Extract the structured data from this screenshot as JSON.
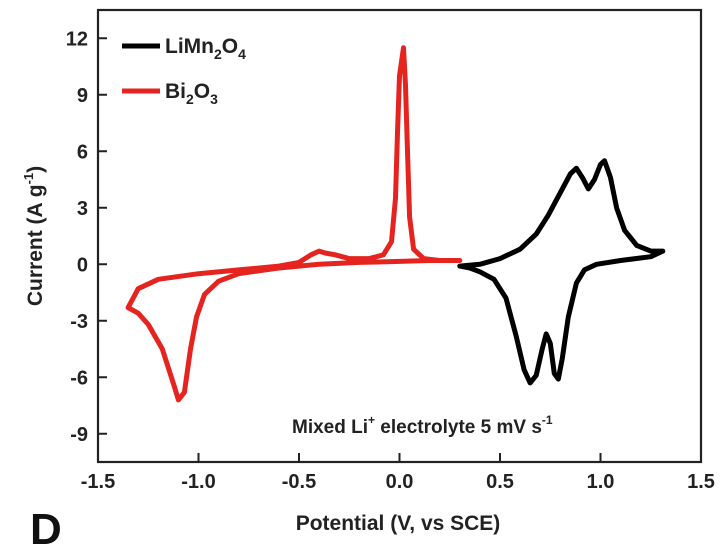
{
  "chart_data": {
    "type": "line",
    "panel_label": "D",
    "xlabel": "Potential (V, vs SCE)",
    "ylabel": "Current (A g",
    "ylabel_sup": "-1",
    "ylabel_end": ")",
    "xlim": [
      -1.5,
      1.5
    ],
    "ylim": [
      -10.5,
      13.5
    ],
    "x_ticks": [
      -1.5,
      -1.0,
      -0.5,
      0.0,
      0.5,
      1.0,
      1.5
    ],
    "x_tick_labels": [
      "-1.5",
      "-1.0",
      "-0.5",
      "0.0",
      "0.5",
      "1.0",
      "1.5"
    ],
    "y_ticks": [
      -9,
      -6,
      -3,
      0,
      3,
      6,
      9,
      12
    ],
    "y_tick_labels": [
      "-9",
      "-6",
      "-3",
      "0",
      "3",
      "6",
      "9",
      "12"
    ],
    "grid": false,
    "legend_position": "top-left",
    "annotation": {
      "prefix": "Mixed Li",
      "prefix_sup": "+",
      "middle": " electrolyte  5 mV s",
      "suffix_sup": "-1"
    },
    "series": [
      {
        "label_parts": [
          {
            "text": "LiMn",
            "sub": false
          },
          {
            "text": "2",
            "sub": true
          },
          {
            "text": "O",
            "sub": false
          },
          {
            "text": "4",
            "sub": true
          }
        ],
        "color": "#000000",
        "points": [
          [
            0.3,
            -0.1
          ],
          [
            0.4,
            0.0
          ],
          [
            0.5,
            0.3
          ],
          [
            0.6,
            0.8
          ],
          [
            0.68,
            1.6
          ],
          [
            0.74,
            2.6
          ],
          [
            0.8,
            3.8
          ],
          [
            0.85,
            4.8
          ],
          [
            0.88,
            5.1
          ],
          [
            0.91,
            4.6
          ],
          [
            0.94,
            4.0
          ],
          [
            0.97,
            4.5
          ],
          [
            1.0,
            5.3
          ],
          [
            1.02,
            5.5
          ],
          [
            1.05,
            4.6
          ],
          [
            1.08,
            3.0
          ],
          [
            1.12,
            1.8
          ],
          [
            1.18,
            1.0
          ],
          [
            1.25,
            0.7
          ],
          [
            1.31,
            0.7
          ],
          [
            1.25,
            0.4
          ],
          [
            1.1,
            0.2
          ],
          [
            0.98,
            0.0
          ],
          [
            0.92,
            -0.3
          ],
          [
            0.88,
            -1.0
          ],
          [
            0.84,
            -2.8
          ],
          [
            0.81,
            -5.0
          ],
          [
            0.79,
            -6.1
          ],
          [
            0.77,
            -5.8
          ],
          [
            0.75,
            -4.2
          ],
          [
            0.73,
            -3.7
          ],
          [
            0.71,
            -4.5
          ],
          [
            0.68,
            -5.9
          ],
          [
            0.65,
            -6.3
          ],
          [
            0.62,
            -5.6
          ],
          [
            0.58,
            -3.8
          ],
          [
            0.53,
            -1.8
          ],
          [
            0.47,
            -0.8
          ],
          [
            0.4,
            -0.4
          ],
          [
            0.35,
            -0.2
          ],
          [
            0.3,
            -0.1
          ]
        ]
      },
      {
        "label_parts": [
          {
            "text": "Bi",
            "sub": false
          },
          {
            "text": "2",
            "sub": true
          },
          {
            "text": "O",
            "sub": false
          },
          {
            "text": "3",
            "sub": true
          }
        ],
        "color": "#e52420",
        "points": [
          [
            0.3,
            0.2
          ],
          [
            0.2,
            0.2
          ],
          [
            0.12,
            0.3
          ],
          [
            0.07,
            0.8
          ],
          [
            0.05,
            2.5
          ],
          [
            0.04,
            6.0
          ],
          [
            0.03,
            9.5
          ],
          [
            0.02,
            11.5
          ],
          [
            0.0,
            10.0
          ],
          [
            -0.01,
            7.0
          ],
          [
            -0.02,
            3.5
          ],
          [
            -0.04,
            1.2
          ],
          [
            -0.08,
            0.5
          ],
          [
            -0.15,
            0.3
          ],
          [
            -0.25,
            0.3
          ],
          [
            -0.32,
            0.5
          ],
          [
            -0.37,
            0.6
          ],
          [
            -0.4,
            0.7
          ],
          [
            -0.44,
            0.5
          ],
          [
            -0.5,
            0.1
          ],
          [
            -0.6,
            -0.1
          ],
          [
            -0.8,
            -0.3
          ],
          [
            -1.0,
            -0.5
          ],
          [
            -1.2,
            -0.8
          ],
          [
            -1.3,
            -1.3
          ],
          [
            -1.35,
            -2.3
          ],
          [
            -1.3,
            -2.6
          ],
          [
            -1.25,
            -3.2
          ],
          [
            -1.18,
            -4.5
          ],
          [
            -1.12,
            -6.5
          ],
          [
            -1.1,
            -7.2
          ],
          [
            -1.07,
            -6.8
          ],
          [
            -1.04,
            -4.5
          ],
          [
            -1.01,
            -2.8
          ],
          [
            -0.97,
            -1.6
          ],
          [
            -0.9,
            -0.9
          ],
          [
            -0.8,
            -0.5
          ],
          [
            -0.6,
            -0.2
          ],
          [
            -0.4,
            0.0
          ],
          [
            -0.2,
            0.1
          ],
          [
            0.0,
            0.15
          ],
          [
            0.15,
            0.2
          ],
          [
            0.3,
            0.2
          ]
        ]
      }
    ]
  }
}
